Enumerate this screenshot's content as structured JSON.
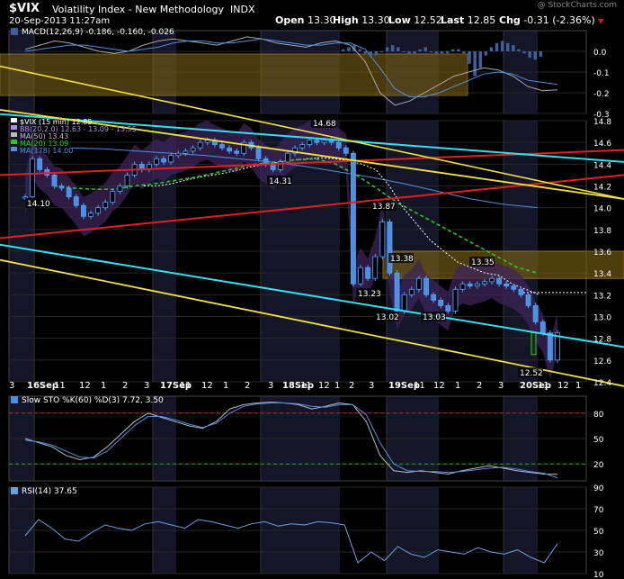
{
  "header": {
    "symbol": "$VIX",
    "name": "Volatility Index - New Methodology",
    "exchange": "INDX",
    "datetime": "20-Sep-2013 11:27am",
    "open_label": "Open",
    "open": "13.30",
    "high_label": "High",
    "high": "13.30",
    "low_label": "Low",
    "low": "12.52",
    "last_label": "Last",
    "last": "12.85",
    "chg_label": "Chg",
    "chg": "-0.31 (-2.36%)",
    "down_icon": "triangle-down-icon",
    "brand": "@ StockCharts.com"
  },
  "colors": {
    "background": "#000000",
    "price_line": "#4f8fe0",
    "candle_up": "#4fa3ff",
    "candle_down": "#4f8fe0",
    "bollinger_fill": "#3c2458",
    "ma50": "#ffffff",
    "ma20": "#22cc22",
    "ma178": "#4f8fe0",
    "channel_cyan": "#33e0f0",
    "channel_yellow": "#f0e040",
    "trend_red": "#e02020",
    "zone_fill": "#7a6014",
    "sto_overbought": "#cc2222",
    "sto_oversold": "#22aa22",
    "down_arrow": "#e02020"
  },
  "chart_data": [
    {
      "type": "bar",
      "panel": "MACD",
      "legend": "MACD(12,26,9) -0.186, -0.160, -0.026",
      "ylim": [
        -0.3,
        0.1
      ],
      "y_ticks": [
        "0.0",
        "-0.1",
        "-0.2",
        "-0.3"
      ],
      "series": [
        {
          "name": "MACD",
          "values": [
            0.01,
            0.03,
            0.05,
            0.04,
            0.02,
            0.0,
            -0.01,
            0.0,
            0.03,
            0.05,
            0.06,
            0.05,
            0.04,
            0.03,
            0.05,
            0.07,
            0.06,
            0.04,
            0.03,
            0.02,
            0.04,
            0.05,
            0.03,
            -0.05,
            -0.2,
            -0.26,
            -0.24,
            -0.2,
            -0.16,
            -0.12,
            -0.1,
            -0.08,
            -0.09,
            -0.12,
            -0.17,
            -0.19,
            -0.186
          ]
        },
        {
          "name": "Signal",
          "values": [
            0.0,
            0.01,
            0.02,
            0.03,
            0.03,
            0.02,
            0.01,
            0.0,
            0.01,
            0.02,
            0.04,
            0.05,
            0.05,
            0.04,
            0.04,
            0.05,
            0.06,
            0.05,
            0.04,
            0.03,
            0.03,
            0.04,
            0.04,
            0.01,
            -0.08,
            -0.18,
            -0.22,
            -0.22,
            -0.2,
            -0.17,
            -0.14,
            -0.11,
            -0.1,
            -0.11,
            -0.14,
            -0.15,
            -0.16
          ]
        },
        {
          "name": "Histogram",
          "values": [
            0.01,
            0.02,
            0.03,
            0.01,
            -0.01,
            -0.02,
            -0.02,
            0.0,
            0.02,
            0.03,
            0.02,
            0.0,
            -0.01,
            -0.01,
            0.01,
            0.02,
            0.0,
            -0.01,
            -0.01,
            -0.01,
            0.01,
            0.01,
            -0.01,
            -0.06,
            -0.12,
            -0.08,
            -0.02,
            0.02,
            0.04,
            0.05,
            0.04,
            0.03,
            0.01,
            -0.01,
            -0.03,
            -0.04,
            -0.026
          ]
        }
      ]
    },
    {
      "type": "line",
      "panel": "Price",
      "legend": [
        "$VIX (15 min) 12.85",
        "BB(20,2.0) 12.63 - 13.09 - 13.55",
        "MA(50) 13.43",
        "MA(20) 13.09",
        "MA(178) 14.00"
      ],
      "ylim": [
        12.4,
        14.8
      ],
      "y_ticks": [
        "14.8",
        "14.6",
        "14.4",
        "14.2",
        "14.0",
        "13.8",
        "13.6",
        "13.4",
        "13.2",
        "13.0",
        "12.8",
        "12.6",
        "12.4"
      ],
      "x_labels": [
        "3",
        "16Sep",
        "11",
        "12",
        "1",
        "2",
        "3",
        "17Sep",
        "11",
        "12",
        "1",
        "2",
        "3",
        "18Sep",
        "11",
        "12",
        "1",
        "2",
        "3",
        "19Sep",
        "11",
        "12",
        "1",
        "2",
        "3",
        "20Sep",
        "11",
        "12",
        "1"
      ],
      "series": [
        {
          "name": "$VIX (15 min)",
          "values": [
            14.1,
            14.45,
            14.35,
            14.3,
            14.2,
            14.18,
            14.1,
            14.02,
            13.92,
            13.95,
            14.0,
            14.05,
            14.15,
            14.2,
            14.3,
            14.4,
            14.35,
            14.4,
            14.45,
            14.42,
            14.48,
            14.5,
            14.52,
            14.55,
            14.6,
            14.62,
            14.58,
            14.55,
            14.52,
            14.5,
            14.6,
            14.55,
            14.45,
            14.4,
            14.35,
            14.42,
            14.5,
            14.55,
            14.58,
            14.62,
            14.6,
            14.62,
            14.6,
            14.55,
            14.5,
            13.3,
            13.45,
            13.35,
            13.55,
            13.87,
            13.4,
            13.05,
            13.2,
            13.25,
            13.35,
            13.2,
            13.15,
            13.1,
            13.05,
            13.25,
            13.3,
            13.28,
            13.3,
            13.32,
            13.35,
            13.3,
            13.28,
            13.25,
            13.2,
            13.1,
            12.95,
            12.85,
            12.6,
            12.85
          ]
        },
        {
          "name": "MA(50)",
          "values": [
            14.2,
            14.2,
            14.22,
            14.25,
            14.28,
            14.3,
            14.32,
            14.35,
            14.38,
            14.4,
            14.42,
            14.44,
            14.45,
            14.46,
            14.45,
            14.43,
            14.4,
            14.35,
            14.2,
            14.0,
            13.85,
            13.7,
            13.6,
            13.5,
            13.45,
            13.4,
            13.38,
            13.3,
            13.25,
            13.2
          ]
        },
        {
          "name": "MA(20)",
          "values": [
            14.2,
            14.18,
            14.17,
            14.17,
            14.2,
            14.22,
            14.25,
            14.28,
            14.32,
            14.36,
            14.4,
            14.42,
            14.44,
            14.45,
            14.4,
            14.3,
            14.18,
            14.05,
            13.95,
            13.85,
            13.75,
            13.65,
            13.55,
            13.45,
            13.4
          ]
        },
        {
          "name": "MA(178)",
          "values": [
            14.55,
            14.54,
            14.52,
            14.5,
            14.48,
            14.45,
            14.42,
            14.38,
            14.33,
            14.28,
            14.22,
            14.15,
            14.08,
            14.03,
            14.0
          ]
        }
      ],
      "annotations": [
        {
          "text": "14.68",
          "x": "18Sep",
          "y": 14.68
        },
        {
          "text": "14.31",
          "x": "18Sep",
          "y": 14.31
        },
        {
          "text": "14.10",
          "x": "16Sep",
          "y": 14.1
        },
        {
          "text": "13.87",
          "x": "19Sep",
          "y": 13.87
        },
        {
          "text": "13.38",
          "x": "19Sep",
          "y": 13.38
        },
        {
          "text": "13.35",
          "x": "20Sep",
          "y": 13.35
        },
        {
          "text": "13.23",
          "x": "19Sep",
          "y": 13.23
        },
        {
          "text": "13.02",
          "x": "19Sep",
          "y": 13.02
        },
        {
          "text": "13.03",
          "x": "19Sep",
          "y": 13.03
        },
        {
          "text": "12.52",
          "x": "20Sep",
          "y": 12.52
        }
      ]
    },
    {
      "type": "line",
      "panel": "Slow STO",
      "legend": "Slow STO %K(60) %D(3) 7.72, 3.50",
      "ylim": [
        0,
        100
      ],
      "y_ticks": [
        "80",
        "50",
        "20"
      ],
      "overbought": 80,
      "oversold": 20,
      "series": [
        {
          "name": "%K",
          "values": [
            50,
            45,
            40,
            30,
            25,
            28,
            40,
            55,
            70,
            80,
            75,
            70,
            65,
            62,
            70,
            85,
            90,
            92,
            93,
            92,
            90,
            85,
            88,
            92,
            90,
            70,
            30,
            12,
            10,
            12,
            10,
            8,
            12,
            15,
            18,
            15,
            12,
            10,
            8,
            7.72
          ]
        },
        {
          "name": "%D",
          "values": [
            48,
            46,
            42,
            35,
            28,
            27,
            35,
            50,
            65,
            76,
            76,
            72,
            67,
            63,
            68,
            80,
            88,
            91,
            92,
            92,
            91,
            88,
            87,
            90,
            90,
            78,
            45,
            20,
            12,
            11,
            11,
            10,
            11,
            13,
            15,
            16,
            14,
            11,
            9,
            3.5
          ]
        }
      ]
    },
    {
      "type": "line",
      "panel": "RSI",
      "legend": "RSI(14) 37.65",
      "ylim": [
        10,
        90
      ],
      "y_ticks": [
        "90",
        "70",
        "50",
        "30",
        "10"
      ],
      "series": [
        {
          "name": "RSI(14)",
          "values": [
            45,
            60,
            52,
            42,
            40,
            48,
            55,
            52,
            50,
            56,
            58,
            55,
            52,
            60,
            58,
            55,
            52,
            56,
            58,
            54,
            56,
            55,
            58,
            57,
            55,
            20,
            30,
            22,
            35,
            28,
            25,
            32,
            30,
            28,
            34,
            30,
            28,
            32,
            25,
            20,
            37.65
          ]
        }
      ]
    }
  ]
}
